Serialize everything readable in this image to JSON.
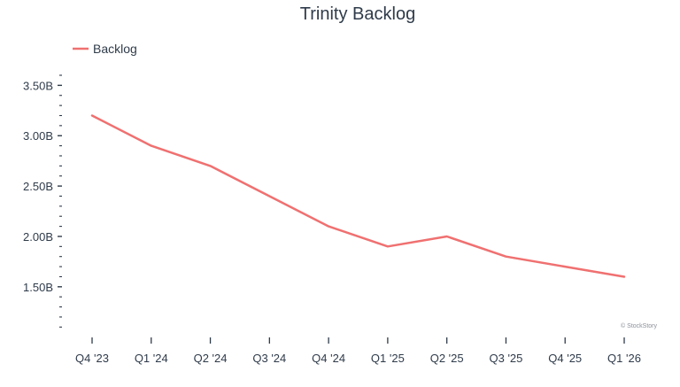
{
  "chart_data": {
    "type": "line",
    "title": "Trinity Backlog",
    "categories": [
      "Q4 '23",
      "Q1 '24",
      "Q2 '24",
      "Q3 '24",
      "Q4 '24",
      "Q1 '25",
      "Q2 '25",
      "Q3 '25",
      "Q4 '25",
      "Q1 '26"
    ],
    "series": [
      {
        "name": "Backlog",
        "color": "#f07070",
        "values": [
          3.2,
          2.9,
          2.7,
          2.4,
          2.1,
          1.9,
          2.0,
          1.8,
          1.7,
          1.6
        ]
      }
    ],
    "value_unit": "billions",
    "ylim": [
      1.05,
      3.6
    ],
    "yticks": [
      1.5,
      2.0,
      2.5,
      3.0,
      3.5
    ],
    "ytick_labels": [
      "1.50B",
      "2.00B",
      "2.50B",
      "3.00B",
      "3.50B"
    ],
    "minor_tick_step": 0.1,
    "grid": false,
    "legend": "top-left",
    "watermark": "© StockStory"
  }
}
